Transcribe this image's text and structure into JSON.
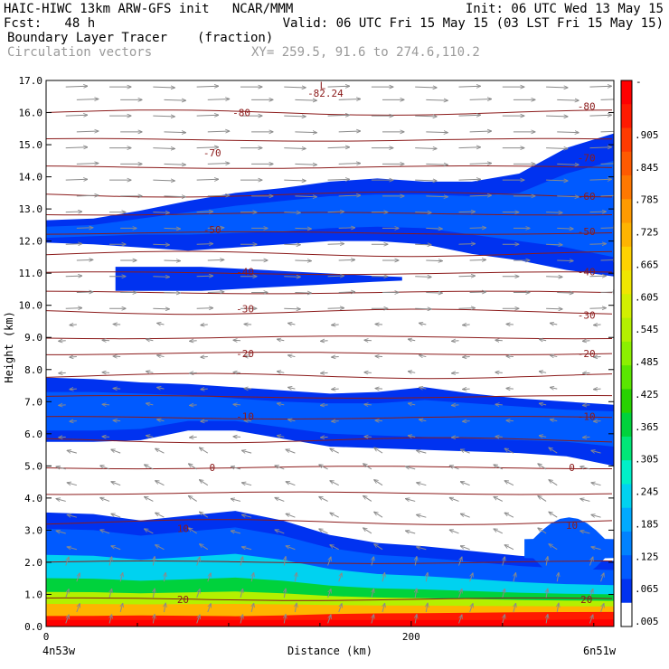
{
  "header": {
    "line1_left": "HAIC-HIWC 13km ARW-GFS init   NCAR/MMM",
    "line1_right": "Init: 06 UTC Wed 13 May 15",
    "line2_left": "Fcst:   48 h",
    "line2_right": "Valid: 06 UTC Fri 15 May 15 (03 LST Fri 15 May 15)",
    "field1_name": "Boundary Layer Tracer",
    "field1_units": "(fraction)",
    "field2_name": "Circulation vectors",
    "xy_text": "XY= 259.5, 91.6 to 274.6,110.2"
  },
  "chart_data": {
    "type": "heatmap",
    "xlabel": "Distance (km)",
    "ylabel": "Height (km)",
    "xlim": [
      0,
      311
    ],
    "ylim": [
      0,
      17
    ],
    "x_ticks": [
      {
        "value": 0,
        "label": "0"
      },
      {
        "value": 200,
        "label": "200"
      }
    ],
    "x_end_labels": {
      "left": "4n53w",
      "right": "6n51w"
    },
    "y_ticks": [
      "0.0",
      "1.0",
      "2.0",
      "3.0",
      "4.0",
      "5.0",
      "6.0",
      "7.0",
      "8.0",
      "9.0",
      "10.0",
      "11.0",
      "12.0",
      "13.0",
      "14.0",
      "15.0",
      "16.0",
      "17.0"
    ],
    "colorbar": {
      "top_label": "-",
      "labels": [
        ".905",
        ".845",
        ".785",
        ".725",
        ".665",
        ".605",
        ".545",
        ".485",
        ".425",
        ".365",
        ".305",
        ".245",
        ".185",
        ".125",
        ".065",
        ".005"
      ],
      "colors": [
        "#ff0000",
        "#ff1a00",
        "#ff3b00",
        "#ff5a00",
        "#ff7800",
        "#ff9a00",
        "#ffb400",
        "#ffd200",
        "#f0e600",
        "#d2f000",
        "#b4f000",
        "#8cf000",
        "#5ae600",
        "#28d200",
        "#00d23c",
        "#00e678",
        "#00f0c8",
        "#00d2f0",
        "#00aaff",
        "#0082ff",
        "#005aff",
        "#0032f0",
        "#ffffff"
      ]
    },
    "contour_labels": [
      {
        "text": "L",
        "x": 151.5,
        "y": 16.85
      },
      {
        "text": "-82.24",
        "x": 153,
        "y": 16.6
      },
      {
        "text": "-80",
        "x": 107,
        "y": 16.0
      },
      {
        "text": "-80",
        "x": 296,
        "y": 16.2
      },
      {
        "text": "-70",
        "x": 91,
        "y": 14.75
      },
      {
        "text": "-70",
        "x": 296,
        "y": 14.6
      },
      {
        "text": "-60",
        "x": 296,
        "y": 13.4
      },
      {
        "text": "-50",
        "x": 91,
        "y": 12.35
      },
      {
        "text": "-50",
        "x": 296,
        "y": 12.3
      },
      {
        "text": "-40",
        "x": 109,
        "y": 11.05
      },
      {
        "text": "-40",
        "x": 296,
        "y": 11.05
      },
      {
        "text": "-30",
        "x": 109,
        "y": 9.9
      },
      {
        "text": "-30",
        "x": 296,
        "y": 9.7
      },
      {
        "text": "-20",
        "x": 109,
        "y": 8.5
      },
      {
        "text": "-20",
        "x": 296,
        "y": 8.5
      },
      {
        "text": "-10",
        "x": 109,
        "y": 6.55
      },
      {
        "text": "-10",
        "x": 296,
        "y": 6.55
      },
      {
        "text": "0",
        "x": 91,
        "y": 4.95
      },
      {
        "text": "0",
        "x": 288,
        "y": 4.95
      },
      {
        "text": "10",
        "x": 75,
        "y": 3.05
      },
      {
        "text": "10",
        "x": 288,
        "y": 3.15
      },
      {
        "text": "20",
        "x": 75,
        "y": 0.85
      },
      {
        "text": "20",
        "x": 296,
        "y": 0.85
      }
    ],
    "contour_lines_height_km": [
      16.0,
      15.15,
      14.3,
      13.45,
      12.85,
      12.25,
      11.6,
      11.0,
      10.4,
      9.8,
      9.0,
      8.5,
      7.8,
      7.15,
      6.5,
      5.8,
      4.95,
      4.15,
      3.25,
      2.0,
      0.85
    ],
    "tracer_bands": [
      {
        "name": "upper",
        "fraction": 0.04,
        "top": [
          12.65,
          12.7,
          12.95,
          13.25,
          13.5,
          13.65,
          13.85,
          13.95,
          13.85,
          13.85,
          14.1,
          14.9,
          15.35
        ],
        "bottom": [
          11.95,
          11.9,
          11.8,
          11.7,
          11.8,
          11.9,
          12.0,
          12.0,
          11.9,
          11.6,
          11.4,
          11.1,
          10.9
        ]
      },
      {
        "name": "upper-inner",
        "fraction": 0.08,
        "top": [
          12.45,
          12.5,
          12.7,
          12.9,
          13.1,
          13.25,
          13.4,
          13.45,
          13.45,
          13.4,
          13.5,
          14.1,
          14.5
        ],
        "bottom": [
          12.1,
          12.15,
          12.2,
          12.2,
          12.25,
          12.3,
          12.4,
          12.45,
          12.4,
          12.2,
          12.0,
          11.8,
          11.5
        ]
      },
      {
        "name": "cirrus-tongue",
        "fraction": 0.02,
        "x_range": [
          38,
          195
        ],
        "top": 11.2,
        "bottom": 10.45
      },
      {
        "name": "middle",
        "fraction": 0.04,
        "top": [
          7.75,
          7.7,
          7.6,
          7.55,
          7.45,
          7.35,
          7.25,
          7.3,
          7.45,
          7.25,
          7.1,
          7.0,
          6.9
        ],
        "bottom": [
          5.75,
          5.75,
          5.8,
          6.1,
          6.1,
          5.85,
          5.6,
          5.55,
          5.5,
          5.45,
          5.4,
          5.3,
          5.0
        ]
      },
      {
        "name": "middle-inner",
        "fraction": 0.1,
        "top": [
          7.3,
          7.3,
          7.25,
          7.2,
          7.1,
          7.0,
          6.95,
          6.95,
          7.05,
          6.95,
          6.85,
          6.75,
          6.7
        ],
        "bottom": [
          6.1,
          6.1,
          6.15,
          6.4,
          6.4,
          6.2,
          6.0,
          5.95,
          5.9,
          5.85,
          5.8,
          5.75,
          5.6
        ]
      },
      {
        "name": "boundary-layer",
        "fraction": 0.3,
        "top": [
          3.55,
          3.5,
          3.3,
          3.45,
          3.6,
          3.3,
          2.85,
          2.6,
          2.5,
          2.35,
          2.2,
          2.1,
          2.05
        ],
        "bottom": [
          0,
          0,
          0,
          0,
          0,
          0,
          0,
          0,
          0,
          0,
          0,
          0,
          0
        ]
      },
      {
        "name": "right-edge-blob",
        "fraction": 0.1,
        "x_range": [
          262,
          311
        ],
        "top": 3.4,
        "bottom": 1.45
      }
    ],
    "vertical_profile_bands": [
      {
        "fraction": 0.005,
        "top": 3.5
      },
      {
        "fraction": 0.065,
        "top": 3.0
      },
      {
        "fraction": 0.185,
        "top": 2.2
      },
      {
        "fraction": 0.305,
        "top": 1.7
      },
      {
        "fraction": 0.485,
        "top": 1.35
      },
      {
        "fraction": 0.665,
        "top": 1.05
      },
      {
        "fraction": 0.845,
        "top": 0.75
      },
      {
        "fraction": 0.965,
        "top": 0.35
      }
    ],
    "wind_vectors": {
      "rows_km": [
        0.1,
        0.45,
        0.9,
        1.4,
        1.9,
        2.4,
        2.9,
        3.4,
        3.9,
        4.4,
        4.9,
        5.4,
        5.9,
        6.4,
        6.9,
        7.4,
        7.9,
        8.4,
        8.9,
        9.4,
        9.9,
        10.4,
        10.9,
        11.4,
        11.9,
        12.4,
        12.9,
        13.4,
        13.9,
        14.4,
        14.9,
        15.4,
        15.9,
        16.4,
        16.8
      ],
      "columns_km": 13
    }
  }
}
